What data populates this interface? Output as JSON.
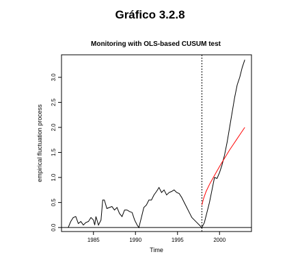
{
  "page": {
    "heading": "Gráfico 3.2.8"
  },
  "colors": {
    "process_line": "#000000",
    "boundary_line": "#ff0000",
    "reference_line": "#000000",
    "background": "#ffffff"
  },
  "chart_data": {
    "type": "line",
    "title": "Monitoring with OLS-based CUSUM test",
    "xlabel": "Time",
    "ylabel": "empirical fluctuation process",
    "xlim": [
      1981.2,
      2003.8
    ],
    "ylim": [
      -0.08,
      3.45
    ],
    "x_ticks": [
      1985,
      1990,
      1995,
      2000
    ],
    "x_tick_labels": [
      "1985",
      "1990",
      "1995",
      "2000"
    ],
    "y_ticks": [
      0.0,
      0.5,
      1.0,
      1.5,
      2.0,
      2.5,
      3.0
    ],
    "y_tick_labels": [
      "0.0",
      "0.5",
      "1.0",
      "1.5",
      "2.0",
      "2.5",
      "3.0"
    ],
    "grid": false,
    "legend": "none",
    "reference_hline": 0,
    "vline": {
      "x": 1997.9,
      "style": "dotted"
    },
    "series": [
      {
        "role": "process",
        "x": [
          1982.0,
          1982.3,
          1982.6,
          1982.9,
          1983.2,
          1983.5,
          1983.8,
          1984.1,
          1984.4,
          1984.7,
          1985.0,
          1985.15,
          1985.3,
          1985.6,
          1985.9,
          1986.1,
          1986.3,
          1986.6,
          1986.9,
          1987.2,
          1987.5,
          1987.8,
          1988.1,
          1988.4,
          1988.7,
          1989.0,
          1989.3,
          1989.6,
          1989.9,
          1990.2,
          1990.4,
          1990.7,
          1991.0,
          1991.3,
          1991.6,
          1991.9,
          1992.2,
          1992.5,
          1992.8,
          1993.1,
          1993.4,
          1993.7,
          1994.0,
          1994.3,
          1994.6,
          1994.9,
          1995.2,
          1995.5,
          1995.8,
          1996.1,
          1996.4,
          1996.7,
          1997.0,
          1997.3,
          1997.6,
          1997.9,
          1998.2,
          1998.5,
          1998.8,
          1999.1,
          1999.4,
          1999.7,
          2000.0,
          2000.3,
          2000.6,
          2000.9,
          2001.2,
          2001.5,
          2001.8,
          2002.1,
          2002.4,
          2002.7,
          2003.0
        ],
        "y": [
          0.0,
          0.12,
          0.2,
          0.22,
          0.08,
          0.12,
          0.05,
          0.1,
          0.12,
          0.2,
          0.15,
          0.05,
          0.22,
          0.05,
          0.15,
          0.55,
          0.55,
          0.38,
          0.4,
          0.42,
          0.35,
          0.4,
          0.28,
          0.22,
          0.35,
          0.35,
          0.32,
          0.3,
          0.15,
          0.05,
          0.0,
          0.2,
          0.4,
          0.45,
          0.55,
          0.55,
          0.65,
          0.72,
          0.8,
          0.7,
          0.75,
          0.65,
          0.7,
          0.72,
          0.75,
          0.7,
          0.68,
          0.6,
          0.5,
          0.4,
          0.3,
          0.2,
          0.15,
          0.1,
          0.05,
          0.0,
          0.1,
          0.3,
          0.5,
          0.75,
          1.0,
          0.98,
          1.1,
          1.25,
          1.45,
          1.7,
          2.0,
          2.3,
          2.6,
          2.85,
          3.0,
          3.2,
          3.35
        ]
      },
      {
        "role": "boundary",
        "x": [
          1997.9,
          1998.1,
          1998.4,
          1998.8,
          1999.2,
          1999.6,
          2000.0,
          2000.4,
          2000.8,
          2001.2,
          2001.6,
          2002.0,
          2002.4,
          2002.8,
          2003.0
        ],
        "y": [
          0.45,
          0.58,
          0.72,
          0.86,
          0.98,
          1.1,
          1.22,
          1.33,
          1.44,
          1.55,
          1.65,
          1.75,
          1.85,
          1.95,
          2.0
        ]
      }
    ]
  }
}
